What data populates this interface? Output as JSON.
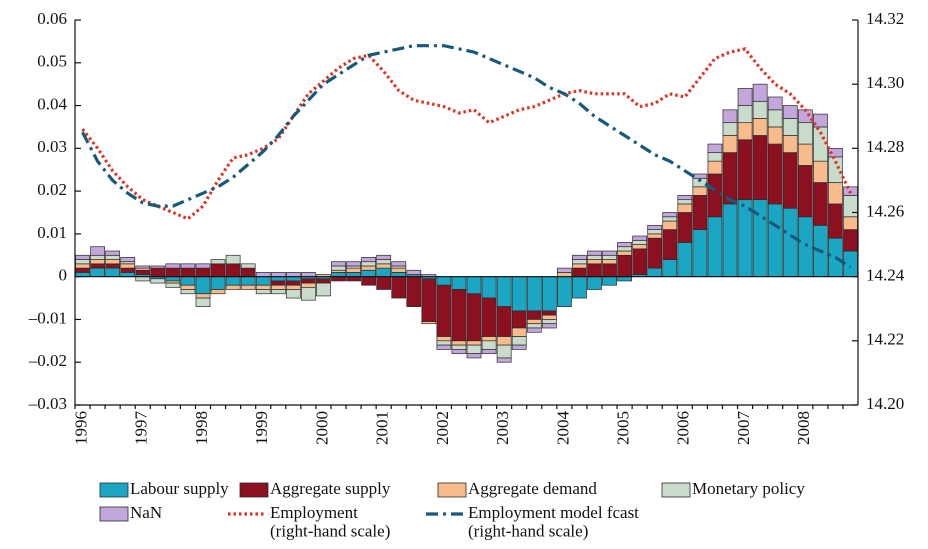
{
  "chart_data": {
    "type": "stacked_bar_line",
    "categories": [
      "1996",
      null,
      null,
      null,
      "1997",
      null,
      null,
      null,
      "1998",
      null,
      null,
      null,
      "1999",
      null,
      null,
      null,
      "2000",
      null,
      null,
      null,
      "2001",
      null,
      null,
      null,
      "2002",
      null,
      null,
      null,
      "2003",
      null,
      null,
      null,
      "2004",
      null,
      null,
      null,
      "2005",
      null,
      null,
      null,
      "2006",
      null,
      null,
      null,
      "2007",
      null,
      null,
      null,
      "2008",
      null,
      null,
      null
    ],
    "ylim": [
      -0.03,
      0.06
    ],
    "yticks": [
      {
        "value": -0.03,
        "label": "–0.03"
      },
      {
        "value": -0.02,
        "label": "–0.02"
      },
      {
        "value": -0.01,
        "label": "–0.01"
      },
      0,
      0.01,
      0.02,
      0.03,
      0.04,
      0.05,
      0.06
    ],
    "y2lim": [
      14.2,
      14.32
    ],
    "y2ticks": [
      {
        "value": 14.2,
        "label": "14.20"
      },
      14.22,
      14.24,
      14.26,
      14.28,
      {
        "value": 14.3,
        "label": "14.30"
      },
      14.32
    ],
    "series": [
      {
        "name": "Labour supply",
        "kind": "bar",
        "color": "#1ba6c4",
        "values": [
          0.001,
          0.002,
          0.002,
          0.001,
          0.0005,
          -0.0005,
          -0.001,
          -0.002,
          -0.004,
          -0.003,
          -0.002,
          -0.002,
          -0.002,
          -0.001,
          -0.001,
          -0.0005,
          -0.0005,
          0.001,
          0.001,
          0.0015,
          0.002,
          0.001,
          0.0005,
          -0.0005,
          -0.002,
          -0.003,
          -0.004,
          -0.005,
          -0.007,
          -0.008,
          -0.008,
          -0.008,
          -0.007,
          -0.005,
          -0.003,
          -0.002,
          -0.001,
          0.0005,
          0.002,
          0.004,
          0.008,
          0.011,
          0.014,
          0.017,
          0.018,
          0.018,
          0.017,
          0.016,
          0.014,
          0.012,
          0.009,
          0.006
        ]
      },
      {
        "name": "Aggregate supply",
        "kind": "bar",
        "color": "#8c1020",
        "values": [
          0.001,
          0.001,
          0.001,
          0.001,
          0.001,
          0.002,
          0.002,
          0.002,
          0.002,
          0.003,
          0.003,
          0.002,
          0,
          -0.001,
          -0.001,
          -0.001,
          -0.001,
          -0.001,
          -0.001,
          -0.002,
          -0.003,
          -0.005,
          -0.007,
          -0.01,
          -0.012,
          -0.012,
          -0.011,
          -0.009,
          -0.007,
          -0.004,
          -0.002,
          -0.001,
          0,
          0.002,
          0.003,
          0.003,
          0.005,
          0.006,
          0.007,
          0.007,
          0.007,
          0.008,
          0.01,
          0.012,
          0.014,
          0.015,
          0.014,
          0.013,
          0.012,
          0.01,
          0.008,
          0.005
        ]
      },
      {
        "name": "Aggregate demand",
        "kind": "bar",
        "color": "#f8bb8c",
        "values": [
          0.001,
          0.001,
          0.001,
          0.001,
          0.0005,
          0,
          -0.0005,
          -0.001,
          -0.001,
          -0.001,
          -0.001,
          -0.001,
          -0.001,
          -0.001,
          -0.001,
          -0.001,
          0.0005,
          0.0005,
          0.001,
          0.001,
          0.001,
          0.001,
          0,
          -0.0005,
          -0.001,
          -0.001,
          -0.001,
          -0.001,
          -0.002,
          -0.002,
          -0.001,
          -0.001,
          0.001,
          0.001,
          0.001,
          0.001,
          0.001,
          0.001,
          0.001,
          0.002,
          0.002,
          0.002,
          0.003,
          0.004,
          0.004,
          0.004,
          0.004,
          0.004,
          0.005,
          0.005,
          0.005,
          0.003
        ]
      },
      {
        "name": "Monetary policy",
        "kind": "bar",
        "color": "#c9dccb",
        "values": [
          0.001,
          0.001,
          0.001,
          0.0005,
          -0.001,
          -0.001,
          -0.001,
          -0.001,
          -0.002,
          0.001,
          0.002,
          0.001,
          -0.001,
          -0.001,
          -0.002,
          -0.003,
          -0.003,
          0.001,
          0.0005,
          0.001,
          0.001,
          0.0005,
          0,
          0,
          -0.001,
          -0.001,
          -0.002,
          -0.002,
          -0.003,
          -0.002,
          -0.001,
          -0.001,
          0,
          0.001,
          0.001,
          0.001,
          0.001,
          0.001,
          0.001,
          0.001,
          0.001,
          0.002,
          0.002,
          0.003,
          0.004,
          0.004,
          0.004,
          0.004,
          0.005,
          0.008,
          0.006,
          0.005
        ]
      },
      {
        "name": "NaN",
        "kind": "bar",
        "color": "#c3a6dc",
        "values": [
          0.001,
          0.002,
          0.001,
          0.001,
          0.0005,
          0.0005,
          0.001,
          0.001,
          0.001,
          0,
          0,
          0,
          0.001,
          0.001,
          0.001,
          0.001,
          0,
          0.001,
          0.001,
          0.001,
          0.001,
          0.001,
          0.001,
          0.0005,
          -0.001,
          -0.001,
          -0.001,
          -0.001,
          -0.001,
          -0.001,
          -0.001,
          -0.001,
          0.001,
          0.001,
          0.001,
          0.001,
          0.001,
          0.001,
          0.001,
          0.001,
          0.001,
          0.001,
          0.002,
          0.003,
          0.004,
          0.004,
          0.003,
          0.003,
          0.003,
          0.003,
          0.002,
          0.002
        ]
      },
      {
        "name": "Employment\n(right-hand scale)",
        "kind": "line",
        "axis": "y2",
        "dash": "dot",
        "color": "#e0301e",
        "values": [
          14.286,
          14.28,
          14.273,
          14.268,
          14.264,
          14.262,
          14.26,
          14.258,
          14.262,
          14.27,
          14.277,
          14.278,
          14.28,
          14.283,
          14.29,
          14.297,
          14.301,
          14.305,
          14.308,
          14.309,
          14.304,
          14.298,
          14.295,
          14.294,
          14.293,
          14.291,
          14.292,
          14.288,
          14.29,
          14.292,
          14.293,
          14.295,
          14.297,
          14.298,
          14.297,
          14.297,
          14.297,
          14.293,
          14.294,
          14.297,
          14.296,
          14.302,
          14.308,
          14.31,
          14.311,
          14.305,
          14.3,
          14.297,
          14.292,
          14.285,
          14.276,
          14.266
        ]
      },
      {
        "name": "Employment model fcast\n(right-hand scale)",
        "kind": "line",
        "axis": "y2",
        "dash": "dashdot",
        "color": "#17597a",
        "values": [
          14.285,
          14.276,
          14.27,
          14.266,
          14.263,
          14.262,
          14.262,
          14.264,
          14.266,
          14.268,
          14.271,
          14.275,
          14.279,
          14.284,
          14.29,
          14.295,
          14.3,
          14.303,
          14.306,
          14.309,
          14.31,
          14.311,
          14.312,
          14.312,
          14.312,
          14.311,
          14.31,
          14.308,
          14.306,
          14.304,
          14.302,
          14.299,
          14.297,
          14.294,
          14.29,
          14.287,
          14.284,
          14.281,
          14.278,
          14.276,
          14.273,
          14.27,
          14.267,
          14.264,
          14.262,
          14.259,
          14.256,
          14.253,
          14.25,
          14.248,
          14.246,
          14.243
        ]
      }
    ]
  }
}
